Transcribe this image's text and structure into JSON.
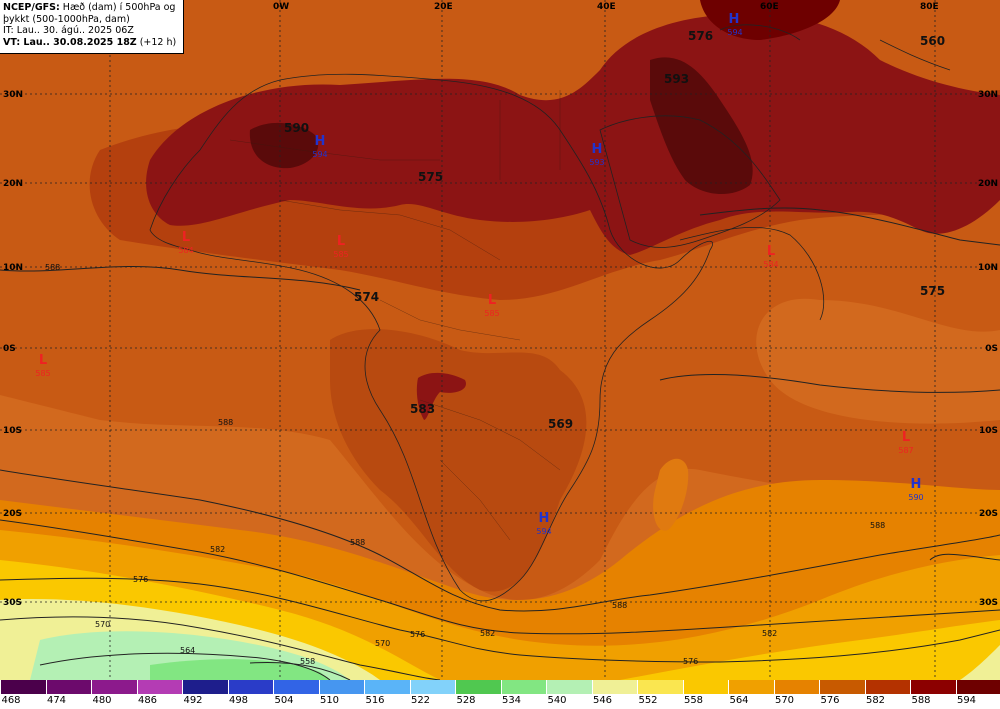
{
  "info_box": {
    "line1_bold": "NCEP/GFS:",
    "line1_rest": " Hæð (dam) í 500hPa og",
    "line2": "þykkt (500-1000hPa, dam)",
    "line3": "IT: Lau.. 30. ágú.. 2025 06Z",
    "line4_bold": "VT: Lau.. 30.08.2025 18Z",
    "line4_rest": " (+12 h)"
  },
  "lon_labels": [
    "0W",
    "20E",
    "40E",
    "60E",
    "80E"
  ],
  "lat_labels_left": [
    "30N",
    "20N",
    "10N",
    "0S",
    "10S",
    "20S",
    "30S"
  ],
  "lat_labels_right": [
    "30N",
    "20N",
    "10N",
    "0S",
    "10S",
    "20S",
    "30S"
  ],
  "height_labels": [
    "576",
    "593",
    "590",
    "575",
    "574",
    "583",
    "569",
    "575",
    "560"
  ],
  "contour_labels": [
    "588",
    "582",
    "576",
    "570",
    "564",
    "558",
    "582",
    "576",
    "570",
    "588",
    "588",
    "582",
    "576",
    "588",
    "588"
  ],
  "pressure_centers": [
    {
      "type": "H",
      "value": "594",
      "color": "#2233cc"
    },
    {
      "type": "H",
      "value": "594",
      "color": "#2233cc"
    },
    {
      "type": "H",
      "value": "593",
      "color": "#2233cc"
    },
    {
      "type": "H",
      "value": "594",
      "color": "#2233cc"
    },
    {
      "type": "H",
      "value": "590",
      "color": "#2233cc"
    },
    {
      "type": "L",
      "value": "584",
      "color": "#ee2222"
    },
    {
      "type": "L",
      "value": "585",
      "color": "#ee2222"
    },
    {
      "type": "L",
      "value": "585",
      "color": "#ee2222"
    },
    {
      "type": "L",
      "value": "584",
      "color": "#ee2222"
    },
    {
      "type": "L",
      "value": "585",
      "color": "#ee2222"
    },
    {
      "type": "L",
      "value": "587",
      "color": "#ee2222"
    }
  ],
  "legend": {
    "labels": [
      "468",
      "474",
      "480",
      "486",
      "492",
      "498",
      "504",
      "510",
      "516",
      "522",
      "528",
      "534",
      "540",
      "546",
      "552",
      "558",
      "564",
      "570",
      "576",
      "582",
      "588",
      "594"
    ],
    "colors": [
      "#4b004b",
      "#6c0a6c",
      "#8c1a8c",
      "#b43cb4",
      "#1e1e8c",
      "#2a3cc8",
      "#3264e6",
      "#4696f0",
      "#5ab4f8",
      "#82d2fa",
      "#50c850",
      "#82e682",
      "#b4f0b4",
      "#f0f096",
      "#fae650",
      "#fac800",
      "#f0a000",
      "#e68200",
      "#c85a00",
      "#b43200",
      "#8c0000",
      "#6e0000"
    ]
  },
  "colors": {
    "ocean_base": "#d2691e",
    "dark_ridge": "#8c1414",
    "darkest": "#5a0a0a",
    "mid_brown": "#b84a10",
    "orange": "#e68200",
    "gold": "#f0a000",
    "yellow": "#fac800",
    "light_yellow": "#f0f096",
    "mint": "#b4f0b4",
    "green": "#82e682"
  }
}
